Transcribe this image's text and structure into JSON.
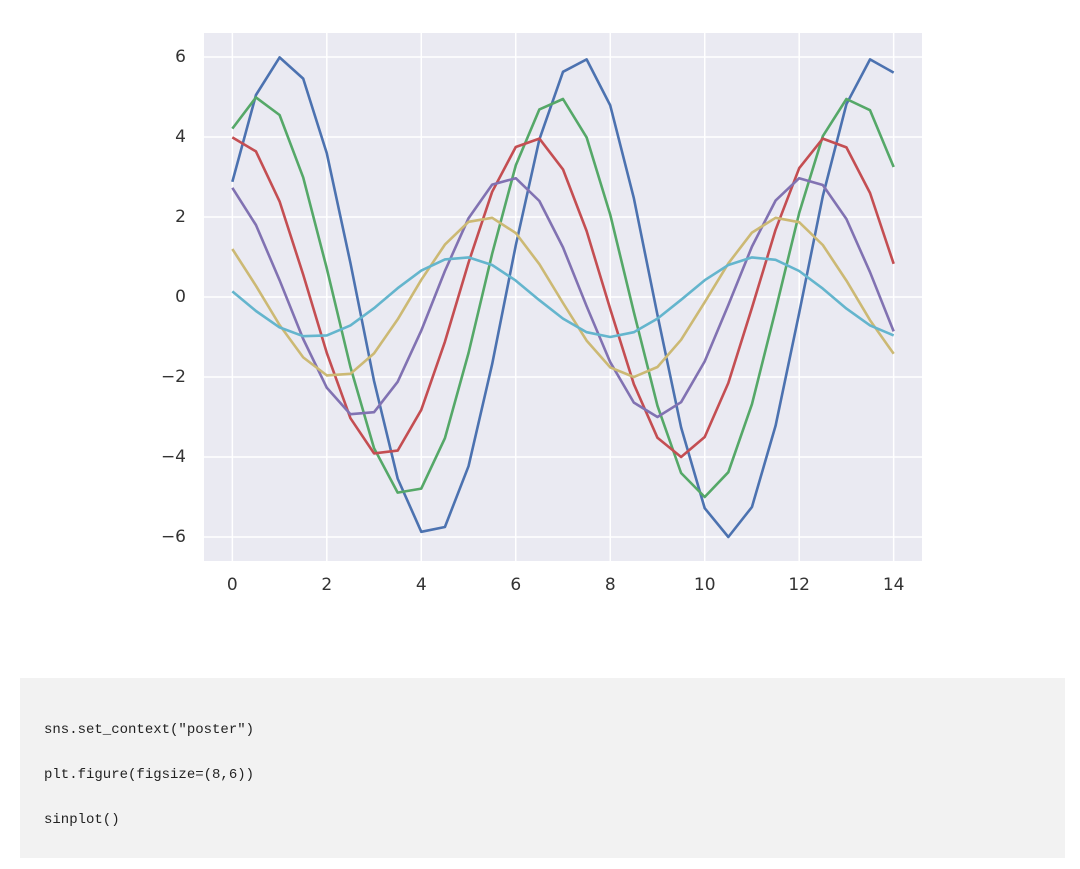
{
  "chart_data": {
    "type": "line",
    "x": [
      0,
      0.5,
      1,
      1.5,
      2,
      2.5,
      3,
      3.5,
      4,
      4.5,
      5,
      5.5,
      6,
      6.5,
      7,
      7.5,
      8,
      8.5,
      9,
      9.5,
      10,
      10.5,
      11,
      11.5,
      12,
      12.5,
      13,
      13.5,
      14
    ],
    "series": [
      {
        "color": "#4c72b0",
        "values": [
          2.88,
          5.05,
          5.99,
          5.46,
          3.59,
          0.85,
          -2.1,
          -4.54,
          -5.87,
          -5.75,
          -4.23,
          -1.68,
          1.29,
          3.94,
          5.63,
          5.94,
          4.79,
          2.47,
          -0.45,
          -3.26,
          -5.28,
          -6.0,
          -5.25,
          -3.22,
          -0.4,
          2.52,
          4.82,
          5.94,
          5.61
        ]
      },
      {
        "color": "#55a868",
        "values": [
          4.21,
          4.99,
          4.55,
          2.99,
          0.71,
          -1.75,
          -3.78,
          -4.89,
          -4.79,
          -3.53,
          -1.4,
          1.08,
          3.29,
          4.69,
          4.95,
          3.99,
          2.06,
          -0.38,
          -2.72,
          -4.4,
          -5.0,
          -4.38,
          -2.68,
          -0.33,
          2.1,
          4.02,
          4.95,
          4.67,
          3.25
        ]
      },
      {
        "color": "#c44e52",
        "values": [
          3.99,
          3.64,
          2.39,
          0.56,
          -1.4,
          -3.03,
          -3.91,
          -3.84,
          -2.82,
          -1.12,
          0.86,
          2.63,
          3.75,
          3.96,
          3.19,
          1.65,
          -0.3,
          -2.18,
          -3.52,
          -4.0,
          -3.5,
          -2.15,
          -0.27,
          1.68,
          3.22,
          3.96,
          3.74,
          2.6,
          0.83
        ]
      },
      {
        "color": "#8172b2",
        "values": [
          2.73,
          1.8,
          0.42,
          -1.05,
          -2.27,
          -2.93,
          -2.88,
          -2.12,
          -0.84,
          0.65,
          1.97,
          2.81,
          2.97,
          2.4,
          1.24,
          -0.23,
          -1.63,
          -2.64,
          -3.0,
          -2.63,
          -1.61,
          -0.2,
          1.26,
          2.41,
          2.97,
          2.8,
          1.95,
          0.62,
          -0.86
        ]
      },
      {
        "color": "#ccb974",
        "values": [
          1.2,
          0.28,
          -0.7,
          -1.51,
          -1.96,
          -1.92,
          -1.41,
          -0.56,
          0.43,
          1.31,
          1.88,
          1.98,
          1.6,
          0.82,
          -0.15,
          -1.09,
          -1.76,
          -2.0,
          -1.75,
          -1.07,
          -0.13,
          0.84,
          1.61,
          1.98,
          1.87,
          1.3,
          0.41,
          -0.58,
          -1.42
        ]
      },
      {
        "color": "#64b5cd",
        "values": [
          0.14,
          -0.35,
          -0.76,
          -0.98,
          -0.96,
          -0.71,
          -0.28,
          0.22,
          0.66,
          0.94,
          0.99,
          0.8,
          0.41,
          -0.08,
          -0.54,
          -0.88,
          -1.0,
          -0.88,
          -0.54,
          -0.07,
          0.42,
          0.8,
          0.99,
          0.93,
          0.65,
          0.21,
          -0.29,
          -0.71,
          -0.96
        ]
      }
    ],
    "xlim": [
      -0.6,
      14.6
    ],
    "ylim": [
      -6.6,
      6.6
    ],
    "xticks": [
      0,
      2,
      4,
      6,
      8,
      10,
      12,
      14
    ],
    "yticks": [
      {
        "value": -6,
        "label": "−6"
      },
      {
        "value": -4,
        "label": "−4"
      },
      {
        "value": -2,
        "label": "−2"
      },
      0,
      2,
      4,
      6
    ],
    "grid": true,
    "background": "#eaeaf2"
  },
  "code_block": {
    "lines": [
      "sns.set_context(\"poster\")",
      "plt.figure(figsize=(8,6))",
      "sinplot()"
    ]
  }
}
